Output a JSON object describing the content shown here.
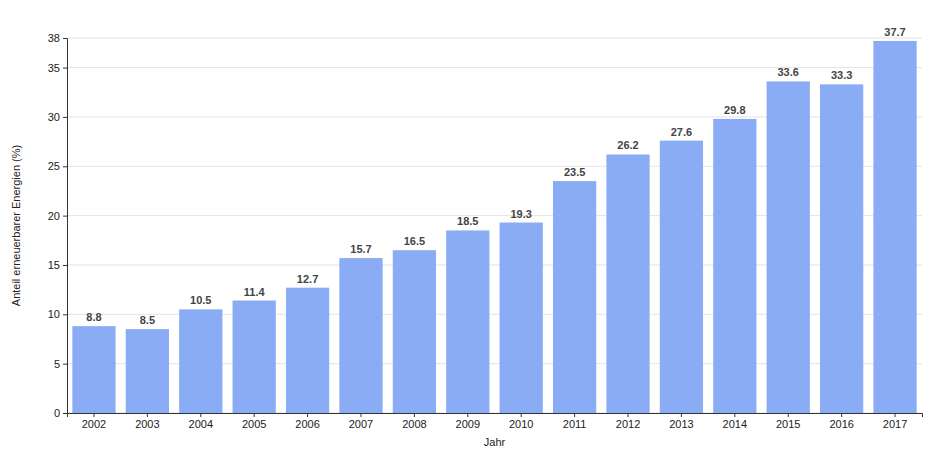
{
  "chart_data": {
    "type": "bar",
    "x_label": "Jahr",
    "y_label": "Anteil erneuerbarer Energien (%)",
    "categories": [
      "2002",
      "2003",
      "2004",
      "2005",
      "2006",
      "2007",
      "2008",
      "2009",
      "2010",
      "2011",
      "2012",
      "2013",
      "2014",
      "2015",
      "2016",
      "2017"
    ],
    "values": [
      8.8,
      8.5,
      10.5,
      11.4,
      12.7,
      15.7,
      16.5,
      18.5,
      19.3,
      23.5,
      26.2,
      27.6,
      29.8,
      33.6,
      33.3,
      37.7
    ],
    "color": "#8aacf5",
    "ylim": [
      0,
      38
    ],
    "yticks": [
      0,
      5,
      10,
      15,
      20,
      25,
      30,
      35,
      38
    ],
    "grid": true,
    "data_labels": true
  }
}
